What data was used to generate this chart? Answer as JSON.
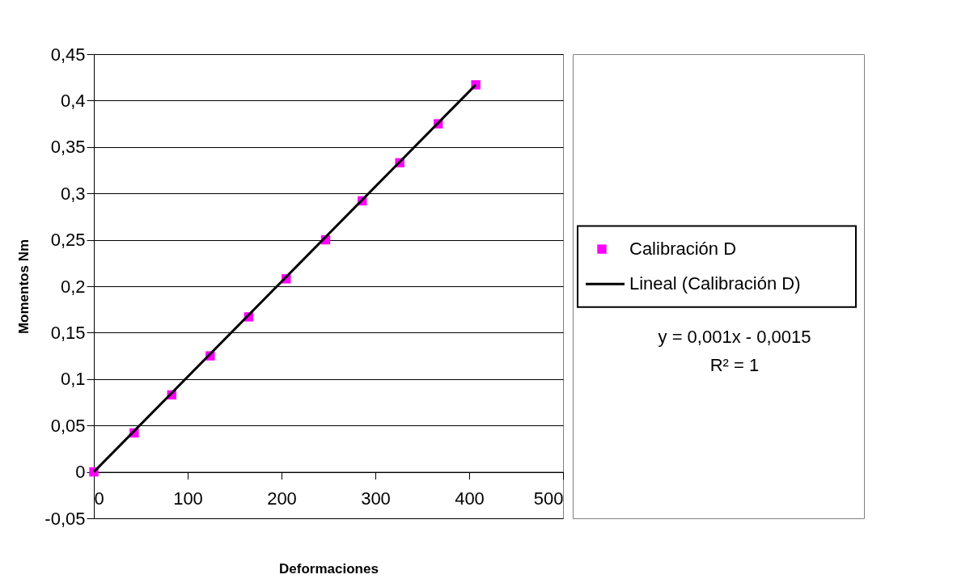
{
  "chart_data": {
    "type": "scatter",
    "xlabel": "Deformaciones",
    "ylabel": "Momentos Nm",
    "x": [
      0,
      43,
      83,
      124,
      165,
      205,
      247,
      286,
      326,
      367,
      407
    ],
    "series": [
      {
        "name": "Calibración D",
        "color": "#ff00ff",
        "marker": "square",
        "values": [
          0,
          0.042,
          0.083,
          0.125,
          0.167,
          0.208,
          0.25,
          0.292,
          0.333,
          0.375,
          0.417
        ]
      },
      {
        "name": "Lineal (Calibración D)",
        "type": "line",
        "color": "#000000",
        "line_style": "solid",
        "x": [
          0,
          407
        ],
        "values": [
          0,
          0.417
        ]
      }
    ],
    "xlim": [
      0,
      500
    ],
    "xticks": [
      0,
      100,
      200,
      300,
      400,
      500
    ],
    "ylim": [
      -0.05,
      0.45
    ],
    "yticks": [
      {
        "value": -0.05,
        "label": "-0,05"
      },
      0,
      {
        "value": 0.05,
        "label": "0,05"
      },
      {
        "value": 0.1,
        "label": "0,1"
      },
      {
        "value": 0.15,
        "label": "0,15"
      },
      {
        "value": 0.2,
        "label": "0,2"
      },
      {
        "value": 0.25,
        "label": "0,25"
      },
      {
        "value": 0.3,
        "label": "0,3"
      },
      {
        "value": 0.35,
        "label": "0,35"
      },
      {
        "value": 0.4,
        "label": "0,4"
      },
      {
        "value": 0.45,
        "label": "0,45"
      }
    ],
    "grid": "y",
    "legend": "right",
    "annotations": [
      "y = 0,001x - 0,0015",
      "R² = 1"
    ]
  }
}
